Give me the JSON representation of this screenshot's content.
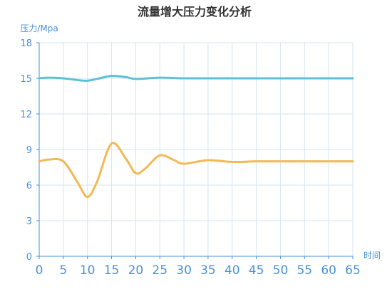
{
  "chart_data": {
    "type": "line",
    "title": "流量增大压力变化分析",
    "ylabel": "压力/Mpa",
    "xlabel": "时间",
    "xlim": [
      0,
      65
    ],
    "ylim": [
      0,
      18
    ],
    "x_ticks": [
      0,
      5,
      10,
      15,
      20,
      25,
      30,
      35,
      40,
      45,
      50,
      55,
      60,
      65
    ],
    "y_ticks": [
      0,
      3,
      6,
      9,
      12,
      15,
      18
    ],
    "grid": true,
    "series": [
      {
        "color": "#5bc2d6",
        "x": [
          0,
          2,
          5,
          8,
          10,
          12,
          15,
          18,
          20,
          25,
          30,
          35,
          40,
          45,
          50,
          55,
          60,
          65
        ],
        "values": [
          15.0,
          15.05,
          15.0,
          14.85,
          14.8,
          14.95,
          15.2,
          15.1,
          14.95,
          15.05,
          15.0,
          15.0,
          15.0,
          15.0,
          15.0,
          15.0,
          15.0,
          15.0
        ]
      },
      {
        "color": "#f2b955",
        "x": [
          0,
          2,
          5,
          8,
          10,
          12,
          15,
          18,
          20,
          22,
          25,
          28,
          30,
          35,
          40,
          45,
          50,
          55,
          60,
          65
        ],
        "values": [
          8.0,
          8.15,
          8.0,
          6.2,
          5.0,
          6.3,
          9.5,
          8.2,
          7.0,
          7.4,
          8.5,
          8.1,
          7.8,
          8.1,
          7.95,
          8.0,
          8.0,
          8.0,
          8.0,
          8.0
        ]
      }
    ]
  },
  "colors": {
    "axis_text": "#4a90d9",
    "axis_line": "#4a90d9",
    "grid": "#d6e6f3",
    "title": "#333333"
  }
}
